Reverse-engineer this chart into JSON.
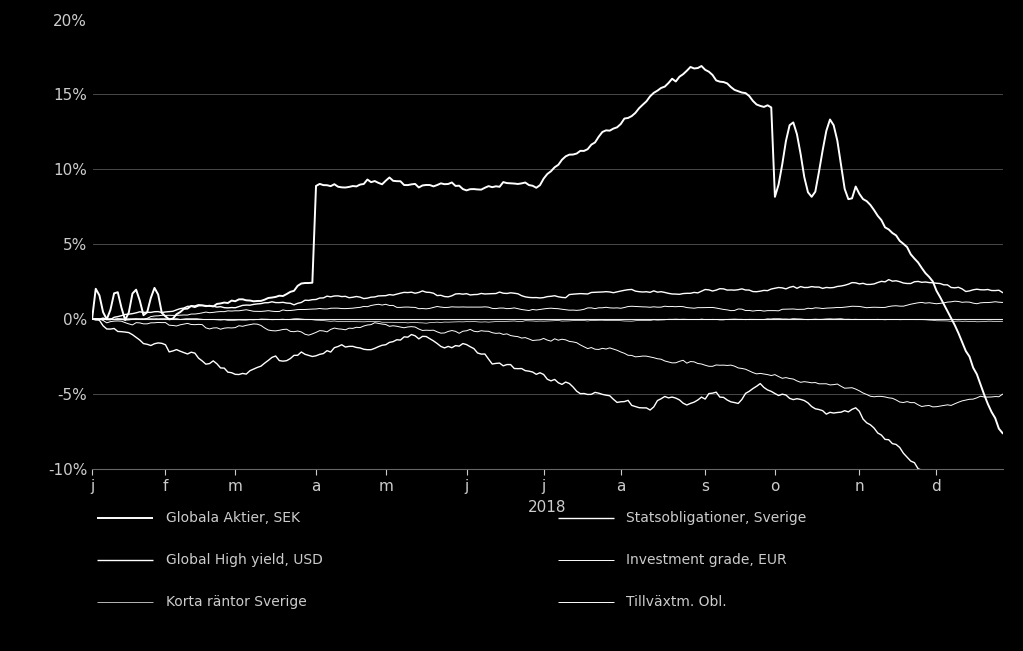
{
  "background_color": "#000000",
  "text_color": "#cccccc",
  "grid_color": "#666666",
  "ylim": [
    -0.1,
    0.2
  ],
  "yticks": [
    -0.1,
    -0.05,
    0.0,
    0.05,
    0.1,
    0.15,
    0.2
  ],
  "ytick_labels": [
    "-10%",
    "-5%",
    "0%",
    "5%",
    "10%",
    "15%",
    "20%"
  ],
  "month_labels": [
    "j",
    "f",
    "m",
    "a",
    "m",
    "j",
    "j",
    "a",
    "s",
    "o",
    "n",
    "d"
  ],
  "xlabel": "2018",
  "legend_left": [
    "Globala Aktier, SEK",
    "Global High yield, USD",
    "Korta räntor Sverige"
  ],
  "legend_right": [
    "Statsobligationer, Sverige",
    "Investment grade, EUR",
    "Tillväxtm. Obl."
  ]
}
